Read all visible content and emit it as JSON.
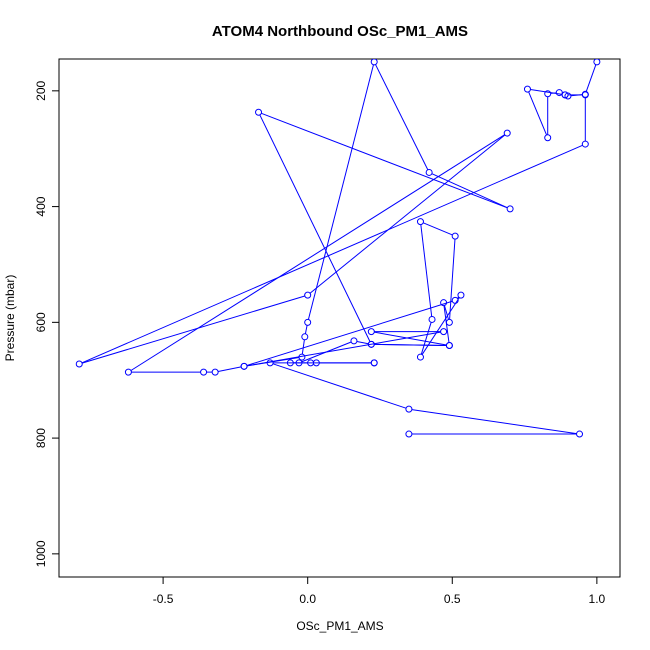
{
  "chart_data": {
    "type": "line",
    "title": "ATOM4 Northbound OSc_PM1_AMS",
    "xlabel": "OSc_PM1_AMS",
    "ylabel": "Pressure (mbar)",
    "xlim": [
      -0.86,
      1.08
    ],
    "ylim": [
      1040,
      145
    ],
    "y_reversed": true,
    "x_ticks": [
      -0.5,
      0.0,
      0.5,
      1.0
    ],
    "x_tick_labels": [
      "-0.5",
      "0.0",
      "0.5",
      "1.0"
    ],
    "y_ticks": [
      200,
      400,
      600,
      800,
      1000
    ],
    "y_tick_labels": [
      "200",
      "400",
      "600",
      "800",
      "1000"
    ],
    "grid": false,
    "legend": "none",
    "line_color": "#0000ff",
    "marker": "open-circle",
    "series": [
      {
        "x": [
          1.0,
          0.96,
          0.9,
          0.89,
          0.87,
          0.83,
          0.83,
          0.76,
          0.89,
          0.96,
          0.96,
          -0.79,
          0.0,
          0.69,
          -0.62,
          -0.36,
          -0.32,
          -0.22,
          -0.02,
          -0.01,
          0.0,
          0.23,
          0.42,
          0.7,
          -0.17,
          0.22,
          0.49,
          0.47,
          0.49,
          0.51,
          0.39,
          0.43,
          0.39,
          0.53,
          0.51,
          -0.22,
          0.47,
          0.22,
          0.49,
          0.22,
          0.16,
          -0.03,
          -0.06,
          0.01,
          0.03,
          0.23,
          0.23,
          -0.13,
          0.35,
          0.94,
          0.35
        ],
        "y": [
          150,
          206,
          209,
          207,
          203,
          205,
          281,
          197,
          207,
          207,
          292,
          672,
          553,
          273,
          686,
          686,
          686,
          676,
          660,
          625,
          600,
          150,
          341,
          404,
          237,
          638,
          640,
          566,
          600,
          451,
          426,
          595,
          660,
          553,
          562,
          676,
          616,
          616,
          640,
          638,
          632,
          670,
          670,
          670,
          670,
          670,
          670,
          670,
          750,
          793,
          793
        ]
      }
    ]
  }
}
